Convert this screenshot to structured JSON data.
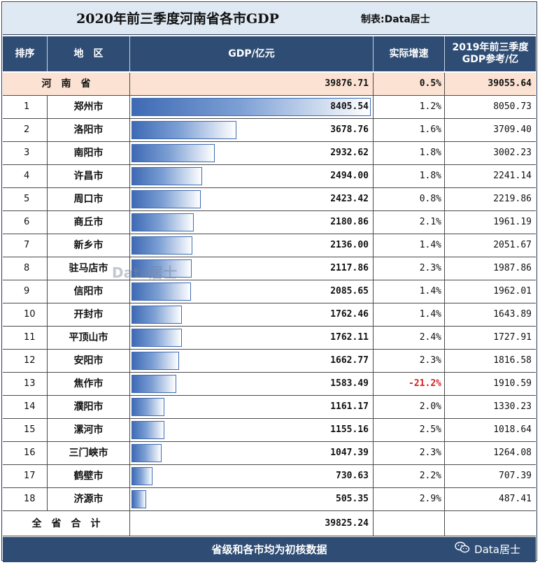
{
  "title": "2020年前三季度河南省各市GDP",
  "maker": "制表:Data居士",
  "headers": {
    "rank": "排序",
    "region": "地　区",
    "gdp": "GDP/亿元",
    "rate": "实际增速",
    "ref": "2019年前三季度GDP参考/亿"
  },
  "province": {
    "name": "河南省",
    "gdp": "39876.71",
    "rate": "0.5%",
    "ref": "39055.64"
  },
  "total": {
    "label": "全省合计",
    "gdp": "39825.24"
  },
  "footer_note": "省级和各市均为初核数据",
  "wechat_label": "Data居士",
  "watermark": "Data居士",
  "colors": {
    "header_bg": "#2f4d74",
    "title_bg": "#dfe9f3",
    "province_bg": "#fbe2d3",
    "bar": "#3e6ab4",
    "negative": "#d61f1f"
  },
  "chart_data": {
    "type": "table",
    "title": "2020年前三季度河南省各市GDP",
    "columns": [
      "排序",
      "地区",
      "GDP/亿元",
      "实际增速",
      "2019年前三季度GDP参考/亿"
    ],
    "rows": [
      {
        "rank": "1",
        "city": "郑州市",
        "gdp": 8405.54,
        "gdp_text": "8405.54",
        "rate": "1.2%",
        "ref": "8050.73"
      },
      {
        "rank": "2",
        "city": "洛阳市",
        "gdp": 3678.76,
        "gdp_text": "3678.76",
        "rate": "1.6%",
        "ref": "3709.40"
      },
      {
        "rank": "3",
        "city": "南阳市",
        "gdp": 2932.62,
        "gdp_text": "2932.62",
        "rate": "1.8%",
        "ref": "3002.23"
      },
      {
        "rank": "4",
        "city": "许昌市",
        "gdp": 2494.0,
        "gdp_text": "2494.00",
        "rate": "1.8%",
        "ref": "2241.14"
      },
      {
        "rank": "5",
        "city": "周口市",
        "gdp": 2423.42,
        "gdp_text": "2423.42",
        "rate": "0.8%",
        "ref": "2219.86"
      },
      {
        "rank": "6",
        "city": "商丘市",
        "gdp": 2180.86,
        "gdp_text": "2180.86",
        "rate": "2.1%",
        "ref": "1961.19"
      },
      {
        "rank": "7",
        "city": "新乡市",
        "gdp": 2136.0,
        "gdp_text": "2136.00",
        "rate": "1.4%",
        "ref": "2051.67"
      },
      {
        "rank": "8",
        "city": "驻马店市",
        "gdp": 2117.86,
        "gdp_text": "2117.86",
        "rate": "2.3%",
        "ref": "1987.86"
      },
      {
        "rank": "9",
        "city": "信阳市",
        "gdp": 2085.65,
        "gdp_text": "2085.65",
        "rate": "1.4%",
        "ref": "1962.01"
      },
      {
        "rank": "10",
        "city": "开封市",
        "gdp": 1762.46,
        "gdp_text": "1762.46",
        "rate": "1.4%",
        "ref": "1643.89"
      },
      {
        "rank": "11",
        "city": "平顶山市",
        "gdp": 1762.11,
        "gdp_text": "1762.11",
        "rate": "2.4%",
        "ref": "1727.91"
      },
      {
        "rank": "12",
        "city": "安阳市",
        "gdp": 1662.77,
        "gdp_text": "1662.77",
        "rate": "2.3%",
        "ref": "1816.58"
      },
      {
        "rank": "13",
        "city": "焦作市",
        "gdp": 1583.49,
        "gdp_text": "1583.49",
        "rate": "-21.2%",
        "ref": "1910.59"
      },
      {
        "rank": "14",
        "city": "濮阳市",
        "gdp": 1161.17,
        "gdp_text": "1161.17",
        "rate": "2.0%",
        "ref": "1330.23"
      },
      {
        "rank": "15",
        "city": "漯河市",
        "gdp": 1155.16,
        "gdp_text": "1155.16",
        "rate": "2.5%",
        "ref": "1018.64"
      },
      {
        "rank": "16",
        "city": "三门峡市",
        "gdp": 1047.39,
        "gdp_text": "1047.39",
        "rate": "2.3%",
        "ref": "1264.08"
      },
      {
        "rank": "17",
        "city": "鹤壁市",
        "gdp": 730.63,
        "gdp_text": "730.63",
        "rate": "2.2%",
        "ref": "707.39"
      },
      {
        "rank": "18",
        "city": "济源市",
        "gdp": 505.35,
        "gdp_text": "505.35",
        "rate": "2.9%",
        "ref": "487.41"
      }
    ],
    "bar_max": 8405.54
  }
}
